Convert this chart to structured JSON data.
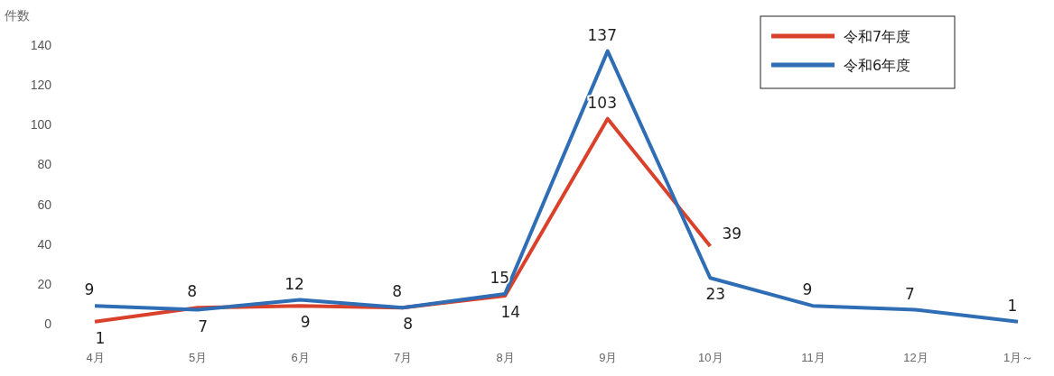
{
  "chart_data": {
    "type": "line",
    "ylabel": "件数",
    "categories": [
      "4月",
      "5月",
      "6月",
      "7月",
      "8月",
      "9月",
      "10月",
      "11月",
      "12月",
      "1月～"
    ],
    "series": [
      {
        "name": "令和7年度",
        "color": "#d9412b",
        "values": [
          1,
          8,
          9,
          8,
          14,
          103,
          39,
          null,
          null,
          null
        ]
      },
      {
        "name": "令和6年度",
        "color": "#2f6db5",
        "values": [
          9,
          7,
          12,
          8,
          15,
          137,
          23,
          9,
          7,
          1
        ]
      }
    ],
    "ylim": [
      0,
      140
    ],
    "yticks": [
      0,
      20,
      40,
      60,
      80,
      100,
      120,
      140
    ],
    "grid": false,
    "legend": "top right",
    "data_labels": true,
    "marker": "none",
    "line_style": "solid"
  }
}
